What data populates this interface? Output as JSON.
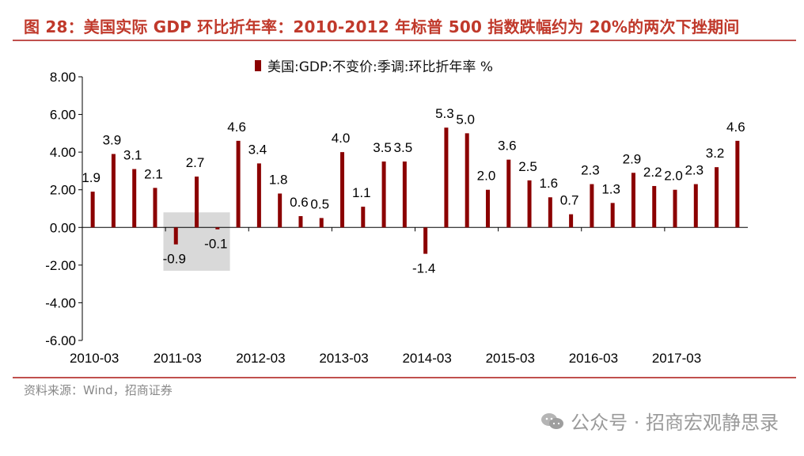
{
  "title": "图 28：美国实际 GDP 环比折年率：2010-2012 年标普 500 指数跌幅约为 20%的两次下挫期间",
  "source": "资料来源：Wind，招商证券",
  "watermark": "公众号 · 招商宏观静思录",
  "colors": {
    "bar": "#8b0000",
    "title": "#c0392b",
    "rule": "#c0504d",
    "highlight": "#d9d9d9"
  },
  "chart_data": {
    "type": "bar",
    "title": "",
    "xlabel": "",
    "ylabel": "",
    "legend": [
      "美国:GDP:不变价:季调:环比折年率 %"
    ],
    "legend_position": "top-center",
    "ylim": [
      -6,
      8
    ],
    "y_ticks": [
      "8.00",
      "6.00",
      "4.00",
      "2.00",
      "0.00",
      "-2.00",
      "-4.00",
      "-6.00"
    ],
    "x_tick_labels": [
      "2010-03",
      "2011-03",
      "2012-03",
      "2013-03",
      "2014-03",
      "2015-03",
      "2016-03",
      "2017-03"
    ],
    "categories": [
      "2010-03",
      "2010-06",
      "2010-09",
      "2010-12",
      "2011-03",
      "2011-06",
      "2011-09",
      "2011-12",
      "2012-03",
      "2012-06",
      "2012-09",
      "2012-12",
      "2013-03",
      "2013-06",
      "2013-09",
      "2013-12",
      "2014-03",
      "2014-06",
      "2014-09",
      "2014-12",
      "2015-03",
      "2015-06",
      "2015-09",
      "2015-12",
      "2016-03",
      "2016-06",
      "2016-09",
      "2016-12",
      "2017-03",
      "2017-06",
      "2017-09",
      "2017-12"
    ],
    "values": [
      1.9,
      3.9,
      3.1,
      2.1,
      -0.9,
      2.7,
      -0.1,
      4.6,
      3.4,
      1.8,
      0.6,
      0.5,
      4.0,
      1.1,
      3.5,
      3.5,
      -1.4,
      5.3,
      5.0,
      2.0,
      3.6,
      2.5,
      1.6,
      0.7,
      2.3,
      1.3,
      2.9,
      2.2,
      2.0,
      2.3,
      3.2,
      4.6
    ],
    "value_labels": [
      "1.9",
      "3.9",
      "3.1",
      "2.1",
      "-0.9",
      "2.7",
      "-0.1",
      "4.6",
      "3.4",
      "1.8",
      "0.6",
      "0.5",
      "4.0",
      "1.1",
      "3.5",
      "3.5",
      "-1.4",
      "5.3",
      "5.0",
      "2.0",
      "3.6",
      "2.5",
      "1.6",
      "0.7",
      "2.3",
      "1.3",
      "2.9",
      "2.2",
      "2.0",
      "2.3",
      "3.2",
      "4.6"
    ],
    "highlight_range": {
      "from_category": "2011-03",
      "to_category": "2011-09",
      "y_from": -2.3,
      "y_to": 0.8
    }
  }
}
